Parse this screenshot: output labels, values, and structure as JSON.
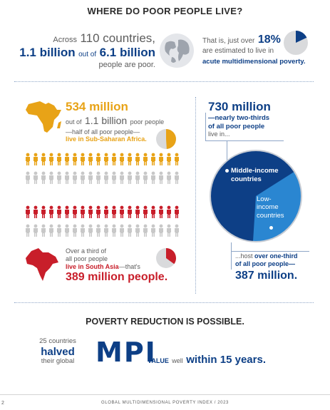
{
  "header": {
    "title": "WHERE DO POOR PEOPLE LIVE?"
  },
  "intro": {
    "across": "Across",
    "countries": "110 countries,",
    "billion_poor": "1.1 billion",
    "out_of": "out of",
    "billion_total": "6.1 billion",
    "people_poor": "people are poor.",
    "that_is": "That is, just over",
    "pct": "18%",
    "estimated": "are estimated to live in",
    "acute": "acute multidimensional poverty."
  },
  "africa": {
    "amount": "534 million",
    "out_of": "out of",
    "billion": "1.1 billion",
    "poor_people": "poor people",
    "half": "—half of all poor people—",
    "live_in": "live in Sub-Saharan Africa."
  },
  "south_asia": {
    "over_third": "Over a third of",
    "all_poor": "all poor people",
    "live_in": "live in South Asia",
    "thats": "—that's",
    "amount": "389 million people."
  },
  "income": {
    "amount": "730 million",
    "nearly": "—nearly two-thirds",
    "of_all": "of all poor people",
    "live_in": "live in...",
    "middle": "Middle-income countries",
    "low": "Low-income countries",
    "host": "...host",
    "over_third": "over one-third",
    "of_all_poor": "of all poor people—",
    "amount2": "387 million."
  },
  "reduction": {
    "title": "POVERTY REDUCTION IS POSSIBLE.",
    "countries": "25 countries",
    "halved": "halved",
    "their_global": "their global",
    "mpi": "MPI",
    "value": "VALUE",
    "well": "well",
    "within": "within 15 years."
  },
  "footer": {
    "page": "2",
    "report": "GLOBAL MULTIDIMENSIONAL POVERTY INDEX / 2023"
  },
  "colors": {
    "navy": "#0d3f86",
    "orange": "#e8a317",
    "red": "#c81e2a",
    "grey": "#5c5c5c",
    "light_blue": "#2a86d1"
  },
  "pie_shares": {
    "world_poor": 0.18,
    "africa_share": 0.49,
    "south_asia_share": 0.35,
    "middle_income": 0.65
  }
}
